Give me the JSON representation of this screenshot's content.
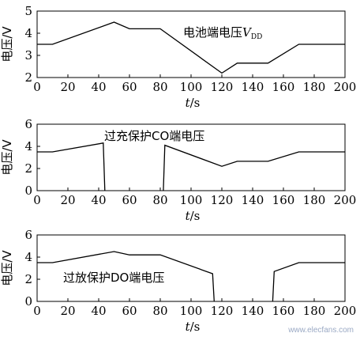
{
  "chart_data": [
    {
      "type": "line",
      "title": "电池端电压",
      "title_var": "V",
      "title_sub": "DD",
      "ylabel": "电压/V",
      "xlabel_var": "t",
      "xlabel_unit": "/s",
      "xlim": [
        0,
        200
      ],
      "ylim": [
        2,
        5
      ],
      "xticks": [
        "0",
        "20",
        "40",
        "60",
        "80",
        "100",
        "120",
        "140",
        "160",
        "180",
        "200"
      ],
      "yticks": [
        "2",
        "3",
        "4",
        "5"
      ],
      "series": [
        {
          "segments": [
            [
              [
                0,
                3.5
              ],
              [
                10,
                3.5
              ],
              [
                50,
                4.5
              ],
              [
                60,
                4.2
              ],
              [
                80,
                4.2
              ],
              [
                120,
                2.2
              ],
              [
                130,
                2.65
              ],
              [
                150,
                2.65
              ],
              [
                170,
                3.5
              ],
              [
                200,
                3.5
              ]
            ]
          ]
        }
      ]
    },
    {
      "type": "line",
      "title": "过充保护CO端电压",
      "ylabel": "电压/V",
      "xlabel_var": "t",
      "xlabel_unit": "/s",
      "xlim": [
        0,
        200
      ],
      "ylim": [
        0,
        6
      ],
      "xticks": [
        "0",
        "20",
        "40",
        "60",
        "80",
        "100",
        "120",
        "140",
        "160",
        "180",
        "200"
      ],
      "yticks": [
        "0",
        "2",
        "4",
        "6"
      ],
      "series": [
        {
          "segments": [
            [
              [
                0,
                3.5
              ],
              [
                10,
                3.5
              ],
              [
                43,
                4.3
              ],
              [
                44,
                0
              ]
            ],
            [
              [
                82,
                0
              ],
              [
                83,
                4.1
              ],
              [
                120,
                2.2
              ],
              [
                130,
                2.65
              ],
              [
                150,
                2.65
              ],
              [
                170,
                3.5
              ],
              [
                200,
                3.5
              ]
            ]
          ]
        }
      ]
    },
    {
      "type": "line",
      "title": "过放保护DO端电压",
      "ylabel": "电压/V",
      "xlabel_var": "t",
      "xlabel_unit": "/s",
      "xlim": [
        0,
        200
      ],
      "ylim": [
        0,
        6
      ],
      "xticks": [
        "0",
        "20",
        "40",
        "60",
        "80",
        "100",
        "120",
        "140",
        "160",
        "180",
        "200"
      ],
      "yticks": [
        "0",
        "2",
        "4",
        "6"
      ],
      "series": [
        {
          "segments": [
            [
              [
                0,
                3.5
              ],
              [
                10,
                3.5
              ],
              [
                50,
                4.5
              ],
              [
                60,
                4.2
              ],
              [
                80,
                4.2
              ],
              [
                114,
                2.5
              ],
              [
                115,
                0
              ]
            ],
            [
              [
                153,
                0
              ],
              [
                154,
                2.7
              ],
              [
                170,
                3.5
              ],
              [
                200,
                3.5
              ]
            ]
          ]
        }
      ]
    }
  ],
  "watermark": "www.elecfans.com"
}
